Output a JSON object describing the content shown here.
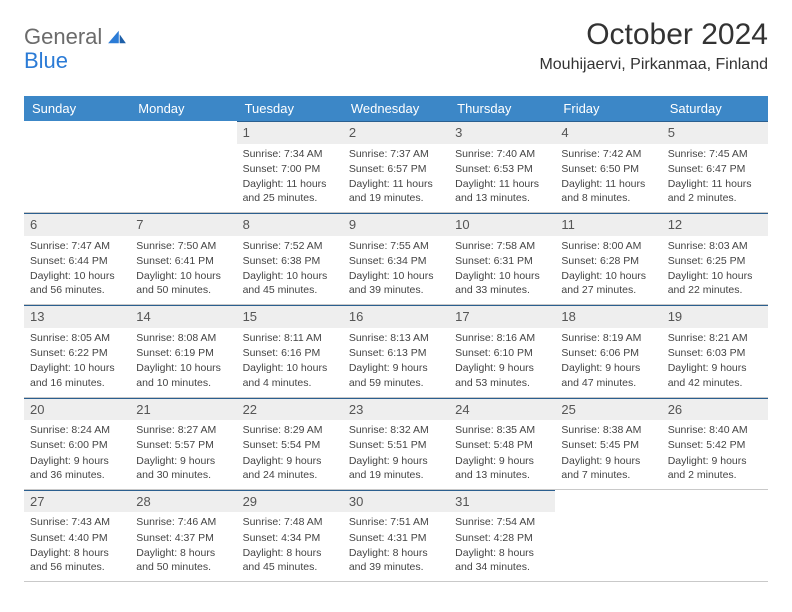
{
  "brand": {
    "word1": "General",
    "word2": "Blue"
  },
  "title": "October 2024",
  "location": "Mouhijaervi, Pirkanmaa, Finland",
  "colors": {
    "header_bg": "#3c87c7",
    "header_text": "#ffffff",
    "daynum_bg": "#eeeeee",
    "daynum_border_top": "#2b5f8f",
    "cell_border": "#c9c9c9",
    "logo_gray": "#6b6b6b",
    "logo_blue": "#2b7bd6"
  },
  "weekdays": [
    "Sunday",
    "Monday",
    "Tuesday",
    "Wednesday",
    "Thursday",
    "Friday",
    "Saturday"
  ],
  "weeks": [
    [
      null,
      null,
      {
        "n": "1",
        "sunrise": "Sunrise: 7:34 AM",
        "sunset": "Sunset: 7:00 PM",
        "daylight": "Daylight: 11 hours and 25 minutes."
      },
      {
        "n": "2",
        "sunrise": "Sunrise: 7:37 AM",
        "sunset": "Sunset: 6:57 PM",
        "daylight": "Daylight: 11 hours and 19 minutes."
      },
      {
        "n": "3",
        "sunrise": "Sunrise: 7:40 AM",
        "sunset": "Sunset: 6:53 PM",
        "daylight": "Daylight: 11 hours and 13 minutes."
      },
      {
        "n": "4",
        "sunrise": "Sunrise: 7:42 AM",
        "sunset": "Sunset: 6:50 PM",
        "daylight": "Daylight: 11 hours and 8 minutes."
      },
      {
        "n": "5",
        "sunrise": "Sunrise: 7:45 AM",
        "sunset": "Sunset: 6:47 PM",
        "daylight": "Daylight: 11 hours and 2 minutes."
      }
    ],
    [
      {
        "n": "6",
        "sunrise": "Sunrise: 7:47 AM",
        "sunset": "Sunset: 6:44 PM",
        "daylight": "Daylight: 10 hours and 56 minutes."
      },
      {
        "n": "7",
        "sunrise": "Sunrise: 7:50 AM",
        "sunset": "Sunset: 6:41 PM",
        "daylight": "Daylight: 10 hours and 50 minutes."
      },
      {
        "n": "8",
        "sunrise": "Sunrise: 7:52 AM",
        "sunset": "Sunset: 6:38 PM",
        "daylight": "Daylight: 10 hours and 45 minutes."
      },
      {
        "n": "9",
        "sunrise": "Sunrise: 7:55 AM",
        "sunset": "Sunset: 6:34 PM",
        "daylight": "Daylight: 10 hours and 39 minutes."
      },
      {
        "n": "10",
        "sunrise": "Sunrise: 7:58 AM",
        "sunset": "Sunset: 6:31 PM",
        "daylight": "Daylight: 10 hours and 33 minutes."
      },
      {
        "n": "11",
        "sunrise": "Sunrise: 8:00 AM",
        "sunset": "Sunset: 6:28 PM",
        "daylight": "Daylight: 10 hours and 27 minutes."
      },
      {
        "n": "12",
        "sunrise": "Sunrise: 8:03 AM",
        "sunset": "Sunset: 6:25 PM",
        "daylight": "Daylight: 10 hours and 22 minutes."
      }
    ],
    [
      {
        "n": "13",
        "sunrise": "Sunrise: 8:05 AM",
        "sunset": "Sunset: 6:22 PM",
        "daylight": "Daylight: 10 hours and 16 minutes."
      },
      {
        "n": "14",
        "sunrise": "Sunrise: 8:08 AM",
        "sunset": "Sunset: 6:19 PM",
        "daylight": "Daylight: 10 hours and 10 minutes."
      },
      {
        "n": "15",
        "sunrise": "Sunrise: 8:11 AM",
        "sunset": "Sunset: 6:16 PM",
        "daylight": "Daylight: 10 hours and 4 minutes."
      },
      {
        "n": "16",
        "sunrise": "Sunrise: 8:13 AM",
        "sunset": "Sunset: 6:13 PM",
        "daylight": "Daylight: 9 hours and 59 minutes."
      },
      {
        "n": "17",
        "sunrise": "Sunrise: 8:16 AM",
        "sunset": "Sunset: 6:10 PM",
        "daylight": "Daylight: 9 hours and 53 minutes."
      },
      {
        "n": "18",
        "sunrise": "Sunrise: 8:19 AM",
        "sunset": "Sunset: 6:06 PM",
        "daylight": "Daylight: 9 hours and 47 minutes."
      },
      {
        "n": "19",
        "sunrise": "Sunrise: 8:21 AM",
        "sunset": "Sunset: 6:03 PM",
        "daylight": "Daylight: 9 hours and 42 minutes."
      }
    ],
    [
      {
        "n": "20",
        "sunrise": "Sunrise: 8:24 AM",
        "sunset": "Sunset: 6:00 PM",
        "daylight": "Daylight: 9 hours and 36 minutes."
      },
      {
        "n": "21",
        "sunrise": "Sunrise: 8:27 AM",
        "sunset": "Sunset: 5:57 PM",
        "daylight": "Daylight: 9 hours and 30 minutes."
      },
      {
        "n": "22",
        "sunrise": "Sunrise: 8:29 AM",
        "sunset": "Sunset: 5:54 PM",
        "daylight": "Daylight: 9 hours and 24 minutes."
      },
      {
        "n": "23",
        "sunrise": "Sunrise: 8:32 AM",
        "sunset": "Sunset: 5:51 PM",
        "daylight": "Daylight: 9 hours and 19 minutes."
      },
      {
        "n": "24",
        "sunrise": "Sunrise: 8:35 AM",
        "sunset": "Sunset: 5:48 PM",
        "daylight": "Daylight: 9 hours and 13 minutes."
      },
      {
        "n": "25",
        "sunrise": "Sunrise: 8:38 AM",
        "sunset": "Sunset: 5:45 PM",
        "daylight": "Daylight: 9 hours and 7 minutes."
      },
      {
        "n": "26",
        "sunrise": "Sunrise: 8:40 AM",
        "sunset": "Sunset: 5:42 PM",
        "daylight": "Daylight: 9 hours and 2 minutes."
      }
    ],
    [
      {
        "n": "27",
        "sunrise": "Sunrise: 7:43 AM",
        "sunset": "Sunset: 4:40 PM",
        "daylight": "Daylight: 8 hours and 56 minutes."
      },
      {
        "n": "28",
        "sunrise": "Sunrise: 7:46 AM",
        "sunset": "Sunset: 4:37 PM",
        "daylight": "Daylight: 8 hours and 50 minutes."
      },
      {
        "n": "29",
        "sunrise": "Sunrise: 7:48 AM",
        "sunset": "Sunset: 4:34 PM",
        "daylight": "Daylight: 8 hours and 45 minutes."
      },
      {
        "n": "30",
        "sunrise": "Sunrise: 7:51 AM",
        "sunset": "Sunset: 4:31 PM",
        "daylight": "Daylight: 8 hours and 39 minutes."
      },
      {
        "n": "31",
        "sunrise": "Sunrise: 7:54 AM",
        "sunset": "Sunset: 4:28 PM",
        "daylight": "Daylight: 8 hours and 34 minutes."
      },
      null,
      null
    ]
  ]
}
